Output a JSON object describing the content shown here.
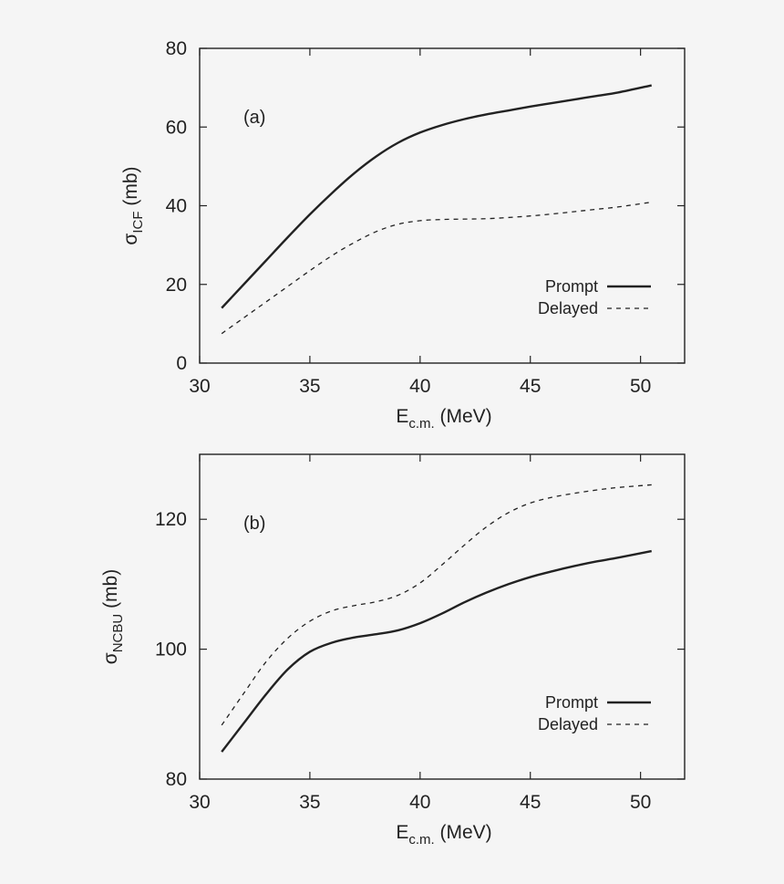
{
  "chart_data": [
    {
      "type": "line",
      "panel_label": "(a)",
      "xlabel": {
        "main": "E",
        "sub": "c.m.",
        "unit": " (MeV)"
      },
      "ylabel": {
        "main": "σ",
        "sub": "ICF",
        "unit": " (mb)"
      },
      "xlim": [
        30,
        52
      ],
      "ylim": [
        0,
        80
      ],
      "xticks": [
        30,
        35,
        40,
        45,
        50
      ],
      "yticks": [
        0,
        20,
        40,
        60,
        80
      ],
      "legend_position": "bottom-right",
      "series": [
        {
          "name": "Prompt",
          "style": "solid",
          "x": [
            31,
            32,
            33,
            34,
            35,
            36,
            37,
            38,
            39,
            40,
            41,
            42,
            43,
            44,
            45,
            46,
            47,
            48,
            49,
            50.5
          ],
          "y": [
            14,
            20,
            26,
            32,
            37.8,
            43.2,
            48.2,
            52.5,
            56.0,
            58.6,
            60.5,
            62.0,
            63.2,
            64.2,
            65.2,
            66.1,
            67.0,
            67.9,
            68.8,
            70.6
          ]
        },
        {
          "name": "Delayed",
          "style": "dashed",
          "x": [
            31,
            32,
            33,
            34,
            35,
            36,
            37,
            38,
            39,
            40,
            41,
            42,
            43,
            44,
            45,
            46,
            47,
            48,
            49,
            50.5
          ],
          "y": [
            7.5,
            11.5,
            15.5,
            19.5,
            23.5,
            27.3,
            30.6,
            33.4,
            35.3,
            36.2,
            36.5,
            36.6,
            36.7,
            37.0,
            37.4,
            37.9,
            38.5,
            39.1,
            39.7,
            40.9
          ]
        }
      ]
    },
    {
      "type": "line",
      "panel_label": "(b)",
      "xlabel": {
        "main": "E",
        "sub": "c.m.",
        "unit": " (MeV)"
      },
      "ylabel": {
        "main": "σ",
        "sub": "NCBU",
        "unit": " (mb)"
      },
      "xlim": [
        30,
        52
      ],
      "ylim": [
        80,
        130
      ],
      "xticks": [
        30,
        35,
        40,
        45,
        50
      ],
      "yticks": [
        80,
        100,
        120
      ],
      "legend_position": "bottom-right",
      "series": [
        {
          "name": "Prompt",
          "style": "solid",
          "x": [
            31,
            32,
            33,
            34,
            35,
            36,
            37,
            38,
            39,
            40,
            41,
            42,
            43,
            44,
            45,
            46,
            47,
            48,
            49,
            50.5
          ],
          "y": [
            84.2,
            88.6,
            93.0,
            96.9,
            99.6,
            101.0,
            101.8,
            102.3,
            102.9,
            104.0,
            105.5,
            107.2,
            108.7,
            110.0,
            111.1,
            112.0,
            112.8,
            113.5,
            114.1,
            115.1
          ]
        },
        {
          "name": "Delayed",
          "style": "dashed",
          "x": [
            31,
            32,
            33,
            34,
            35,
            36,
            37,
            38,
            39,
            40,
            41,
            42,
            43,
            44,
            45,
            46,
            47,
            48,
            49,
            50.5
          ],
          "y": [
            88.3,
            93.2,
            98.0,
            101.7,
            104.3,
            105.9,
            106.7,
            107.3,
            108.3,
            110.2,
            113.0,
            116.0,
            118.8,
            121.0,
            122.5,
            123.4,
            124.0,
            124.5,
            124.9,
            125.3
          ]
        }
      ]
    }
  ]
}
